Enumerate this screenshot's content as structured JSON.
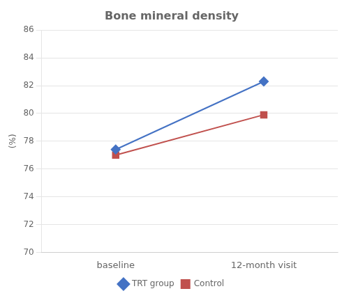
{
  "chart_data": {
    "type": "line",
    "title": "Bone mineral density",
    "ylabel": "(%)",
    "categories": [
      "baseline",
      "12-month visit"
    ],
    "series": [
      {
        "name": "TRT group",
        "color": "#4472C4",
        "marker": "diamond",
        "values": [
          77.4,
          82.3
        ]
      },
      {
        "name": "Control",
        "color": "#C0504D",
        "marker": "square",
        "values": [
          77.0,
          79.9
        ]
      }
    ],
    "ylim": [
      70,
      86
    ],
    "yticks": [
      70,
      72,
      74,
      76,
      78,
      80,
      82,
      84,
      86
    ],
    "grid": true,
    "legend": "bottom"
  }
}
